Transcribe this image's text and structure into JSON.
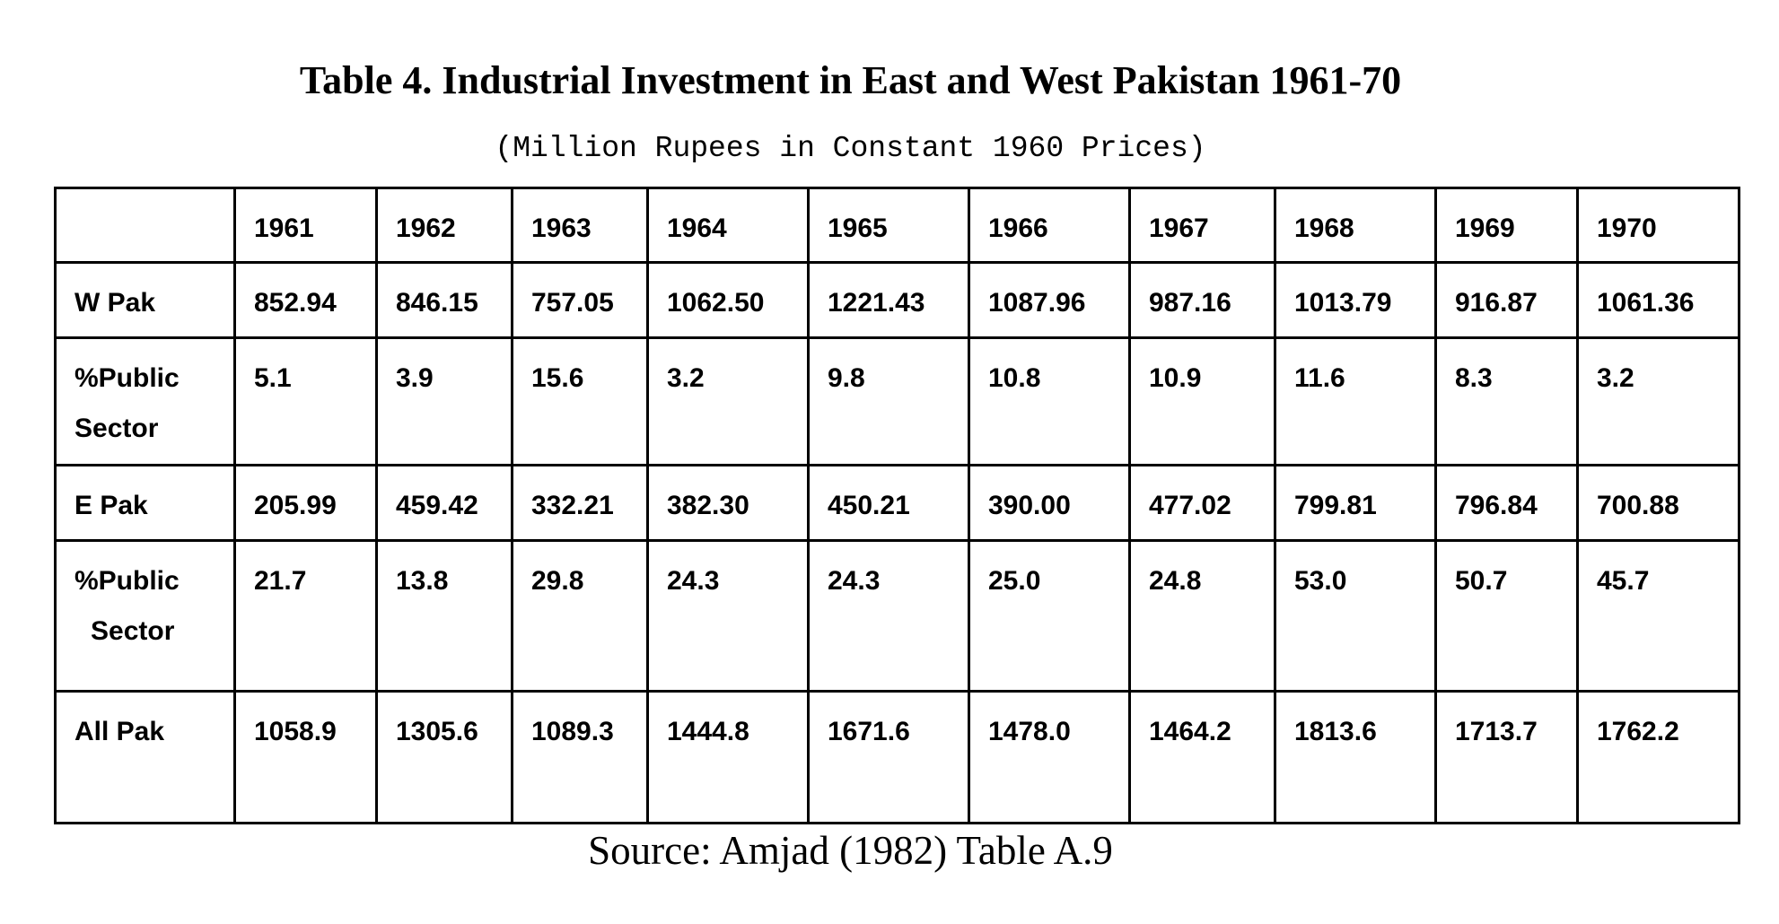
{
  "title": "Table 4. Industrial Investment in East and West Pakistan 1961-70",
  "subtitle": "(Million Rupees in Constant 1960 Prices)",
  "table": {
    "header": {
      "stub": "",
      "years": [
        "1961",
        "1962",
        "1963",
        "1964",
        "1965",
        "1966",
        "1967",
        "1968",
        "1969",
        "1970"
      ]
    },
    "rows": [
      {
        "label_lines": [
          "W Pak"
        ],
        "values": [
          "852.94",
          "846.15",
          "757.05",
          "1062.50",
          "1221.43",
          "1087.96",
          "987.16",
          "1013.79",
          "916.87",
          "1061.36"
        ]
      },
      {
        "label_lines": [
          "%Public",
          "Sector"
        ],
        "values": [
          "5.1",
          "3.9",
          "15.6",
          "3.2",
          "9.8",
          "10.8",
          "10.9",
          "11.6",
          "8.3",
          "3.2"
        ]
      },
      {
        "label_lines": [
          "E Pak"
        ],
        "values": [
          "205.99",
          "459.42",
          "332.21",
          "382.30",
          "450.21",
          "390.00",
          "477.02",
          "799.81",
          "796.84",
          "700.88"
        ]
      },
      {
        "label_lines": [
          "%Public",
          "Sector"
        ],
        "values": [
          "21.7",
          "13.8",
          "29.8",
          "24.3",
          "24.3",
          "25.0",
          "24.8",
          "53.0",
          "50.7",
          "45.7"
        ]
      },
      {
        "label_lines": [
          "All Pak"
        ],
        "values": [
          "1058.9",
          "1305.6",
          "1089.3",
          "1444.8",
          "1671.6",
          "1478.0",
          "1464.2",
          "1813.6",
          "1713.7",
          "1762.2"
        ]
      }
    ]
  },
  "source": "Source: Amjad (1982) Table A.9"
}
